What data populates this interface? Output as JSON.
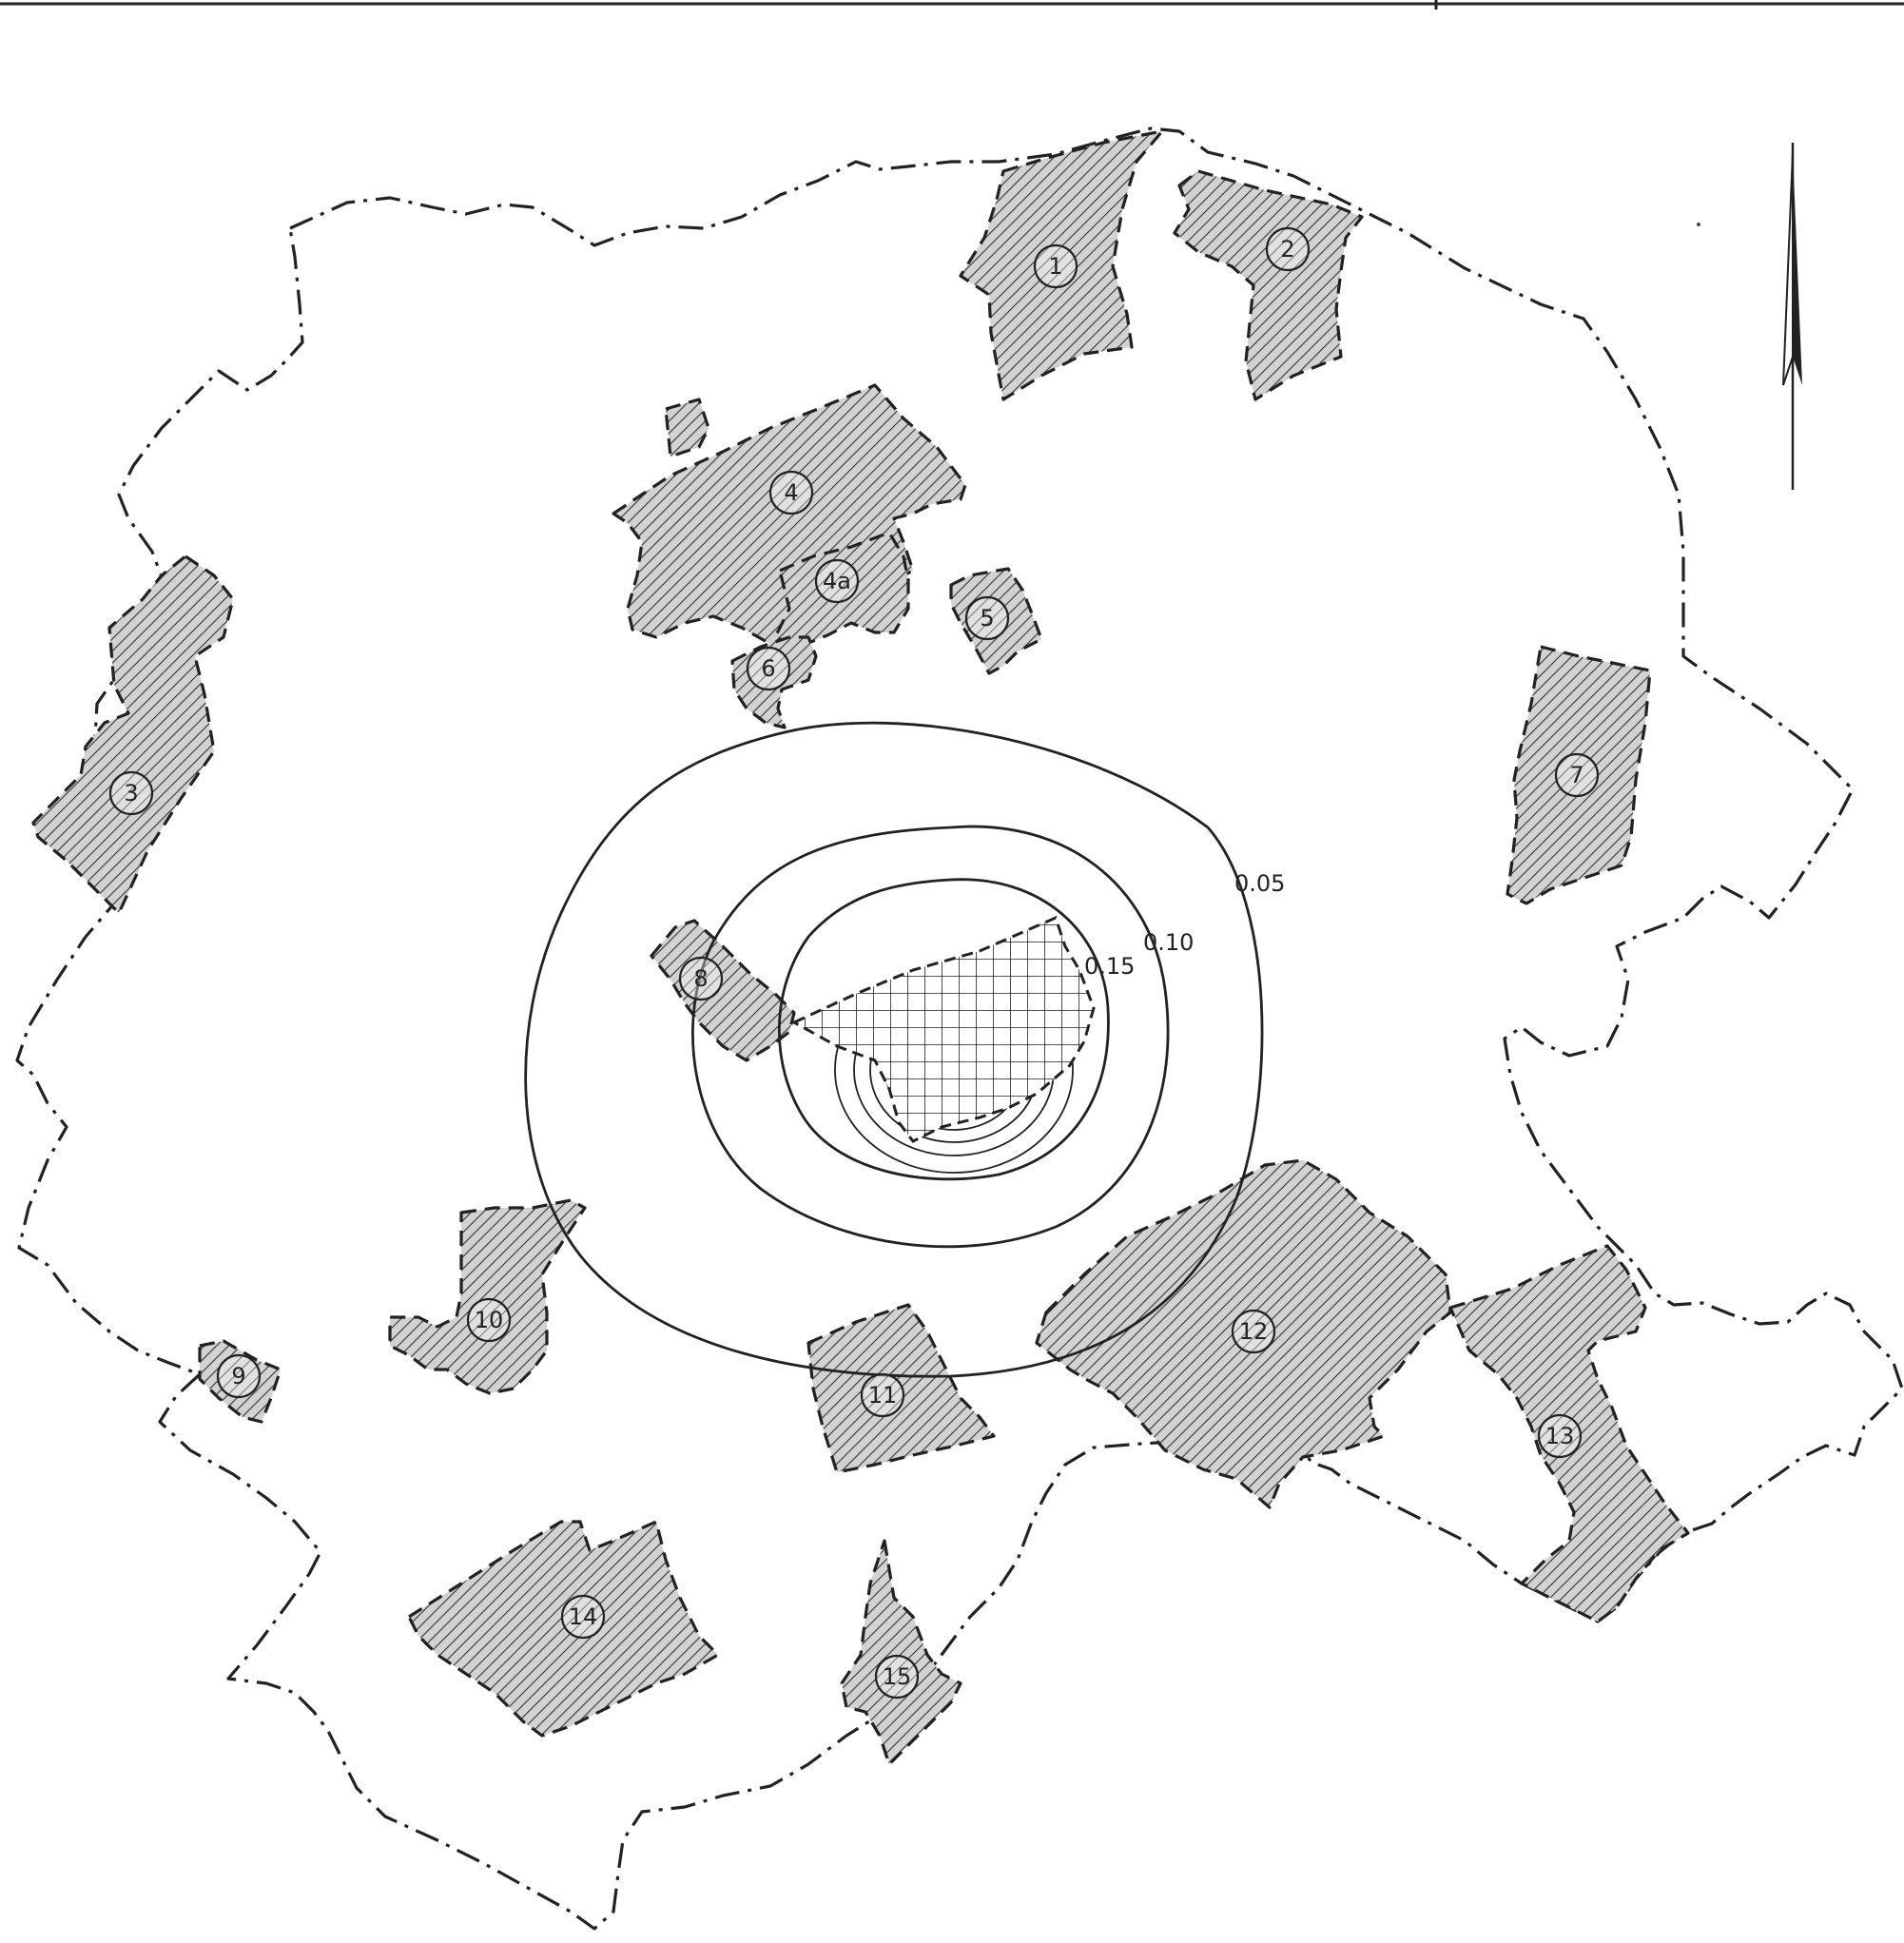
{
  "zones": [
    {
      "id": "1",
      "label": "1"
    },
    {
      "id": "2",
      "label": "2"
    },
    {
      "id": "3",
      "label": "3"
    },
    {
      "id": "4",
      "label": "4"
    },
    {
      "id": "4a",
      "label": "4a"
    },
    {
      "id": "5",
      "label": "5"
    },
    {
      "id": "6",
      "label": "6"
    },
    {
      "id": "7",
      "label": "7"
    },
    {
      "id": "8",
      "label": "8"
    },
    {
      "id": "9",
      "label": "9"
    },
    {
      "id": "10",
      "label": "10"
    },
    {
      "id": "11",
      "label": "11"
    },
    {
      "id": "12",
      "label": "12"
    },
    {
      "id": "13",
      "label": "13"
    },
    {
      "id": "14",
      "label": "14"
    },
    {
      "id": "15",
      "label": "15"
    }
  ],
  "contours": {
    "outer": "0.05",
    "middle": "0.10",
    "inner": "0.15"
  },
  "north_arrow_icon": "north-arrow-icon"
}
